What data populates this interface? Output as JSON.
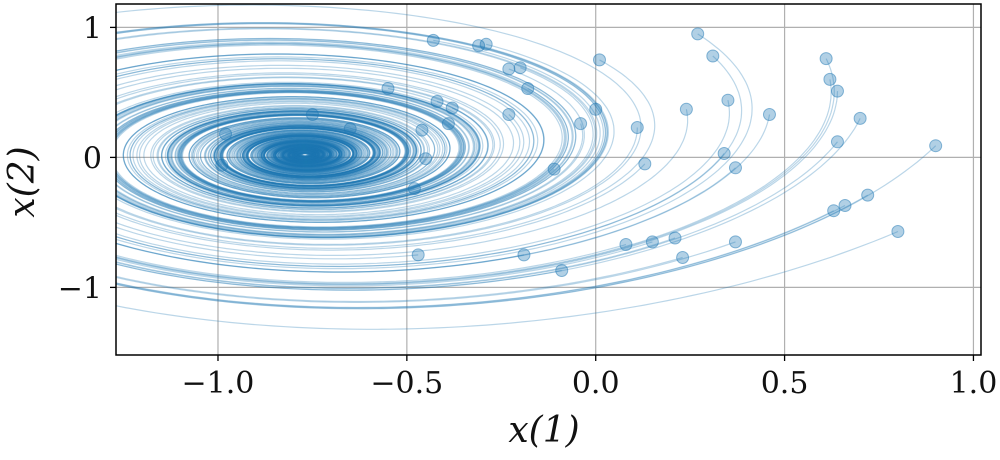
{
  "chart_data": {
    "type": "line",
    "title": "",
    "xlabel": "x(1)",
    "ylabel": "x(2)",
    "xlim": [
      -1.27,
      1.02
    ],
    "ylim": [
      -1.52,
      1.18
    ],
    "xticks": [
      -1.0,
      -0.5,
      0.0,
      0.5,
      1.0
    ],
    "xtick_labels": [
      "−1.0",
      "−0.5",
      "0.0",
      "0.5",
      "1.0"
    ],
    "yticks": [
      1,
      0,
      -1
    ],
    "ytick_labels": [
      "1",
      "0",
      "−1"
    ],
    "grid": true,
    "legend": "none",
    "line_color": "#1f77b4",
    "line_alpha": 0.3,
    "focus": [
      -0.77,
      0.02
    ],
    "initial_points": [
      [
        -0.43,
        0.9
      ],
      [
        -0.31,
        0.86
      ],
      [
        -0.29,
        0.87
      ],
      [
        -0.2,
        0.69
      ],
      [
        -0.23,
        0.68
      ],
      [
        -0.18,
        0.53
      ],
      [
        0.01,
        0.75
      ],
      [
        0.27,
        0.95
      ],
      [
        0.31,
        0.78
      ],
      [
        0.61,
        0.76
      ],
      [
        0.62,
        0.6
      ],
      [
        0.64,
        0.51
      ],
      [
        -0.55,
        0.53
      ],
      [
        -0.42,
        0.43
      ],
      [
        -0.38,
        0.38
      ],
      [
        -0.39,
        0.26
      ],
      [
        -0.23,
        0.33
      ],
      [
        -0.04,
        0.26
      ],
      [
        0.0,
        0.37
      ],
      [
        0.24,
        0.37
      ],
      [
        0.35,
        0.44
      ],
      [
        0.46,
        0.33
      ],
      [
        0.7,
        0.3
      ],
      [
        0.11,
        0.23
      ],
      [
        0.64,
        0.12
      ],
      [
        0.9,
        0.09
      ],
      [
        -0.46,
        0.21
      ],
      [
        -0.65,
        0.22
      ],
      [
        -0.75,
        0.33
      ],
      [
        -0.98,
        0.18
      ],
      [
        -0.99,
        -0.06
      ],
      [
        -0.45,
        -0.01
      ],
      [
        -0.48,
        -0.24
      ],
      [
        -0.11,
        -0.09
      ],
      [
        0.13,
        -0.05
      ],
      [
        0.34,
        0.03
      ],
      [
        0.37,
        -0.08
      ],
      [
        0.72,
        -0.29
      ],
      [
        0.66,
        -0.37
      ],
      [
        0.63,
        -0.41
      ],
      [
        0.8,
        -0.57
      ],
      [
        -0.47,
        -0.75
      ],
      [
        -0.19,
        -0.75
      ],
      [
        -0.09,
        -0.87
      ],
      [
        0.08,
        -0.67
      ],
      [
        0.15,
        -0.65
      ],
      [
        0.21,
        -0.62
      ],
      [
        0.23,
        -0.77
      ],
      [
        0.37,
        -0.65
      ]
    ]
  }
}
